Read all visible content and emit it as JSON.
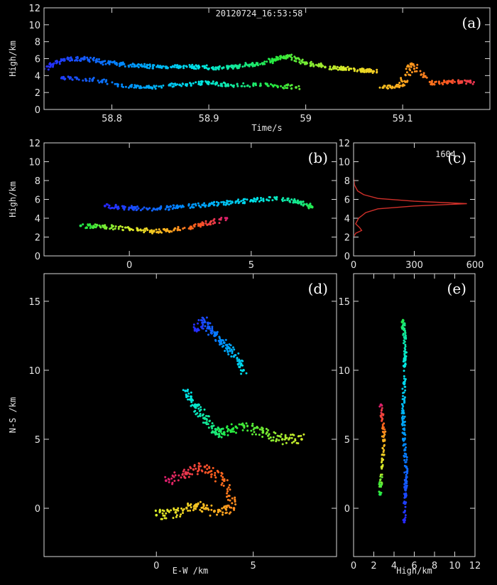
{
  "chart_data": [
    {
      "id": "a",
      "type": "scatter",
      "panel_label": "(a)",
      "title": "20120724_16:53:58",
      "xlabel": "Time/s",
      "ylabel": "High/km",
      "xlim": [
        58.73,
        59.19
      ],
      "ylim": [
        0,
        12
      ],
      "xticks": [
        "58.8",
        "58.9",
        "59",
        "59.1"
      ],
      "xtick_values": [
        58.8,
        58.9,
        59.0,
        59.1
      ],
      "yticks": [
        "0",
        "2",
        "4",
        "6",
        "8",
        "10",
        "12"
      ],
      "ytick_values": [
        0,
        2,
        4,
        6,
        8,
        10,
        12
      ],
      "colormap": "time-jet",
      "series": [
        {
          "x": [
            58.73,
            58.75,
            58.77,
            58.79,
            58.81,
            58.83,
            58.85,
            58.87,
            58.89,
            58.91,
            58.93,
            58.95,
            58.97,
            58.98,
            59.0,
            59.02,
            59.04,
            59.06,
            59.07
          ],
          "y": [
            4.8,
            5.9,
            6.0,
            5.6,
            5.3,
            5.2,
            5.0,
            5.1,
            5.0,
            4.9,
            5.1,
            5.4,
            5.9,
            6.3,
            5.5,
            5.0,
            4.8,
            4.6,
            4.5
          ]
        },
        {
          "x": [
            58.75,
            58.78,
            58.82,
            58.84,
            58.87,
            58.9,
            58.92,
            58.96,
            58.99
          ],
          "y": [
            3.8,
            3.5,
            2.7,
            2.6,
            2.9,
            3.2,
            2.8,
            3.0,
            2.6
          ]
        },
        {
          "x": [
            59.08,
            59.1,
            59.11,
            59.13,
            59.15,
            59.17
          ],
          "y": [
            2.6,
            2.8,
            5.3,
            3.0,
            3.3,
            3.2
          ]
        }
      ]
    },
    {
      "id": "b",
      "type": "scatter",
      "panel_label": "(b)",
      "xlabel": "",
      "ylabel": "High/km",
      "xlim": [
        -3.5,
        8.5
      ],
      "ylim": [
        0,
        12
      ],
      "xticks": [
        "0",
        "5"
      ],
      "xtick_values": [
        0,
        5
      ],
      "yticks": [
        "0",
        "2",
        "4",
        "6",
        "8",
        "10",
        "12"
      ],
      "ytick_values": [
        0,
        2,
        4,
        6,
        8,
        10,
        12
      ],
      "colormap": "time-jet",
      "series": [
        {
          "x": [
            -1.0,
            0.0,
            1.0,
            2.0,
            3.0,
            4.0,
            5.0,
            6.0,
            7.0,
            7.5
          ],
          "y": [
            5.3,
            5.1,
            5.0,
            5.2,
            5.4,
            5.6,
            5.9,
            6.1,
            5.7,
            5.2
          ]
        },
        {
          "x": [
            -2.0,
            -1.0,
            0.0,
            1.0,
            2.0,
            3.0,
            4.0
          ],
          "y": [
            3.2,
            3.1,
            2.9,
            2.6,
            2.8,
            3.3,
            4.0
          ]
        }
      ]
    },
    {
      "id": "c",
      "type": "line",
      "panel_label": "(c)",
      "annotation": "1604",
      "xlabel": "",
      "ylabel": "",
      "xlim": [
        0,
        600
      ],
      "ylim": [
        0,
        12
      ],
      "xticks": [
        "0",
        "300",
        "600"
      ],
      "xtick_values": [
        0,
        300,
        600
      ],
      "yticks": [
        "0",
        "2",
        "4",
        "6",
        "8",
        "10",
        "12"
      ],
      "ytick_values": [
        0,
        2,
        4,
        6,
        8,
        10,
        12
      ],
      "color": "#d0302a",
      "series": [
        {
          "x": [
            0,
            10,
            40,
            30,
            10,
            25,
            60,
            120,
            300,
            560,
            300,
            120,
            50,
            20,
            5,
            0,
            0
          ],
          "y": [
            2.0,
            2.4,
            2.7,
            3.0,
            3.4,
            4.0,
            4.6,
            5.0,
            5.3,
            5.55,
            5.8,
            6.1,
            6.5,
            6.9,
            7.5,
            8.5,
            12
          ]
        }
      ]
    },
    {
      "id": "d",
      "type": "scatter",
      "panel_label": "(d)",
      "xlabel": "E-W /km",
      "ylabel": "N-S /km",
      "xlim": [
        -5.8,
        9.3
      ],
      "ylim": [
        -3.5,
        17
      ],
      "xticks": [
        "0",
        "5"
      ],
      "xtick_values": [
        0,
        5
      ],
      "yticks": [
        "0",
        "5",
        "10",
        "15"
      ],
      "ytick_values": [
        0,
        5,
        10,
        15
      ],
      "colormap": "time-jet",
      "series": [
        {
          "x": [
            2.0,
            2.5,
            3.0,
            3.5,
            4.0,
            4.5
          ],
          "y": [
            13.0,
            13.5,
            12.5,
            12.0,
            11.0,
            10.0
          ]
        },
        {
          "x": [
            1.5,
            2.0,
            2.5,
            3.0,
            3.5,
            4.5,
            5.5,
            6.5,
            7.5
          ],
          "y": [
            8.5,
            7.5,
            6.5,
            5.5,
            5.5,
            6.0,
            5.5,
            5.0,
            5.0
          ]
        },
        {
          "x": [
            0.0,
            1.0,
            2.0,
            3.0,
            4.0,
            3.5,
            2.5,
            1.5,
            0.5
          ],
          "y": [
            -0.5,
            -0.3,
            0.2,
            -0.2,
            0.0,
            2.0,
            3.0,
            2.5,
            2.0
          ]
        }
      ]
    },
    {
      "id": "e",
      "type": "scatter",
      "panel_label": "(e)",
      "xlabel": "High/km",
      "ylabel": "",
      "xlim": [
        0,
        12
      ],
      "ylim": [
        -3.5,
        17
      ],
      "xticks": [
        "0",
        "2",
        "4",
        "6",
        "8",
        "10",
        "12"
      ],
      "xtick_values": [
        0,
        2,
        4,
        6,
        8,
        10,
        12
      ],
      "yticks": [
        "0",
        "5",
        "10",
        "15"
      ],
      "ytick_values": [
        0,
        5,
        10,
        15
      ],
      "colormap": "time-jet",
      "series": [
        {
          "x": [
            5.0,
            5.1,
            5.2,
            5.0,
            4.9,
            5.0,
            5.1,
            5.0,
            4.8
          ],
          "y": [
            -1.0,
            1.0,
            3.0,
            5.0,
            7.0,
            9.0,
            11.0,
            13.0,
            13.5
          ]
        },
        {
          "x": [
            2.6,
            2.8,
            3.0,
            2.7
          ],
          "y": [
            1.0,
            3.0,
            5.5,
            7.5
          ]
        }
      ]
    }
  ]
}
